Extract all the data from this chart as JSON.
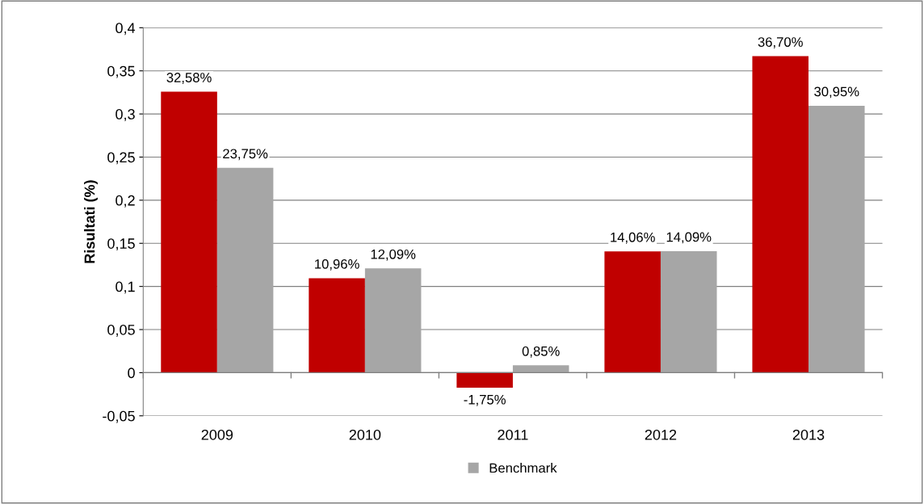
{
  "chart_data": {
    "type": "bar",
    "ylabel": "Risultati (%)",
    "categories": [
      "2009",
      "2010",
      "2011",
      "2012",
      "2013"
    ],
    "series": [
      {
        "color": "#c00000",
        "values": [
          0.3258,
          0.1096,
          -0.0175,
          0.1406,
          0.367
        ],
        "value_labels": [
          "32,58%",
          "10,96%",
          "-1,75%",
          "14,06%",
          "36,70%"
        ]
      },
      {
        "name": "Benchmark",
        "color": "#a6a6a6",
        "values": [
          0.2375,
          0.1209,
          0.0085,
          0.1409,
          0.3095
        ],
        "value_labels": [
          "23,75%",
          "12,09%",
          "0,85%",
          "14,09%",
          "30,95%"
        ]
      }
    ],
    "ylim": [
      -0.05,
      0.4
    ],
    "yticks": [
      {
        "value": -0.05,
        "label": "-0,05"
      },
      {
        "value": 0,
        "label": "0"
      },
      {
        "value": 0.05,
        "label": "0,05"
      },
      {
        "value": 0.1,
        "label": "0,1"
      },
      {
        "value": 0.15,
        "label": "0,15"
      },
      {
        "value": 0.2,
        "label": "0,2"
      },
      {
        "value": 0.25,
        "label": "0,25"
      },
      {
        "value": 0.3,
        "label": "0,3"
      },
      {
        "value": 0.35,
        "label": "0,35"
      },
      {
        "value": 0.4,
        "label": "0,4"
      }
    ],
    "grid": "y",
    "legend": "bottom"
  }
}
